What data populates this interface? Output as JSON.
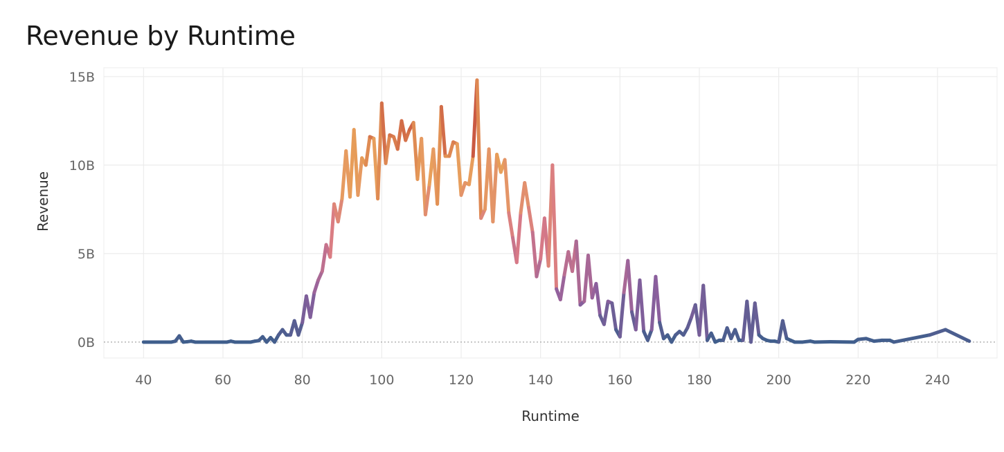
{
  "chart_data": {
    "type": "line",
    "title": "Revenue by Runtime",
    "xlabel": "Runtime",
    "ylabel": "Revenue",
    "xlim": [
      30,
      255
    ],
    "ylim": [
      -0.9,
      15.5
    ],
    "x_ticks": [
      40,
      60,
      80,
      100,
      120,
      140,
      160,
      180,
      200,
      220,
      240
    ],
    "y_ticks": [
      0,
      5,
      10,
      15
    ],
    "y_tick_labels": [
      "0B",
      "5B",
      "10B",
      "15B"
    ],
    "y_unit": "billions",
    "grid": true,
    "colors": {
      "low": "#3f5e8c",
      "mid_low": "#8e5f9e",
      "mid": "#d97a86",
      "mid_high": "#e8a05a",
      "high": "#c0423a",
      "zero_line": "#9a9a9a",
      "grid": "#ececec"
    },
    "series": [
      {
        "values": [
          [
            40,
            0.0
          ],
          [
            41,
            0.0
          ],
          [
            42,
            0.0
          ],
          [
            43,
            0.0
          ],
          [
            44,
            0.0
          ],
          [
            45,
            0.0
          ],
          [
            46,
            0.0
          ],
          [
            47,
            0.0
          ],
          [
            48,
            0.05
          ],
          [
            49,
            0.35
          ],
          [
            50,
            0.0
          ],
          [
            51,
            0.02
          ],
          [
            52,
            0.05
          ],
          [
            53,
            0.0
          ],
          [
            54,
            0.0
          ],
          [
            55,
            0.0
          ],
          [
            56,
            0.0
          ],
          [
            57,
            0.0
          ],
          [
            58,
            0.0
          ],
          [
            59,
            0.0
          ],
          [
            60,
            0.0
          ],
          [
            61,
            0.0
          ],
          [
            62,
            0.05
          ],
          [
            63,
            0.0
          ],
          [
            64,
            0.0
          ],
          [
            65,
            0.0
          ],
          [
            66,
            0.0
          ],
          [
            67,
            0.0
          ],
          [
            68,
            0.05
          ],
          [
            69,
            0.08
          ],
          [
            70,
            0.3
          ],
          [
            71,
            0.0
          ],
          [
            72,
            0.25
          ],
          [
            73,
            0.0
          ],
          [
            74,
            0.4
          ],
          [
            75,
            0.7
          ],
          [
            76,
            0.4
          ],
          [
            77,
            0.4
          ],
          [
            78,
            1.2
          ],
          [
            79,
            0.4
          ],
          [
            80,
            1.1
          ],
          [
            81,
            2.6
          ],
          [
            82,
            1.4
          ],
          [
            83,
            2.8
          ],
          [
            84,
            3.5
          ],
          [
            85,
            4.0
          ],
          [
            86,
            5.5
          ],
          [
            87,
            4.8
          ],
          [
            88,
            7.8
          ],
          [
            89,
            6.8
          ],
          [
            90,
            8.1
          ],
          [
            91,
            10.8
          ],
          [
            92,
            8.2
          ],
          [
            93,
            12.0
          ],
          [
            94,
            8.3
          ],
          [
            95,
            10.4
          ],
          [
            96,
            10.0
          ],
          [
            97,
            11.6
          ],
          [
            98,
            11.5
          ],
          [
            99,
            8.1
          ],
          [
            100,
            13.5
          ],
          [
            101,
            10.1
          ],
          [
            102,
            11.7
          ],
          [
            103,
            11.6
          ],
          [
            104,
            10.9
          ],
          [
            105,
            12.5
          ],
          [
            106,
            11.4
          ],
          [
            107,
            12.0
          ],
          [
            108,
            12.4
          ],
          [
            109,
            9.2
          ],
          [
            110,
            11.5
          ],
          [
            111,
            7.2
          ],
          [
            112,
            8.9
          ],
          [
            113,
            10.9
          ],
          [
            114,
            7.8
          ],
          [
            115,
            13.3
          ],
          [
            116,
            10.5
          ],
          [
            117,
            10.5
          ],
          [
            118,
            11.3
          ],
          [
            119,
            11.2
          ],
          [
            120,
            8.3
          ],
          [
            121,
            9.0
          ],
          [
            122,
            8.9
          ],
          [
            123,
            10.5
          ],
          [
            124,
            14.8
          ],
          [
            125,
            7.0
          ],
          [
            126,
            7.5
          ],
          [
            127,
            10.9
          ],
          [
            128,
            6.8
          ],
          [
            129,
            10.6
          ],
          [
            130,
            9.6
          ],
          [
            131,
            10.3
          ],
          [
            132,
            7.3
          ],
          [
            133,
            5.9
          ],
          [
            134,
            4.5
          ],
          [
            135,
            7.3
          ],
          [
            136,
            9.0
          ],
          [
            137,
            7.6
          ],
          [
            138,
            6.2
          ],
          [
            139,
            3.7
          ],
          [
            140,
            4.7
          ],
          [
            141,
            7.0
          ],
          [
            142,
            4.3
          ],
          [
            143,
            10.0
          ],
          [
            144,
            3.0
          ],
          [
            145,
            2.4
          ],
          [
            146,
            3.8
          ],
          [
            147,
            5.1
          ],
          [
            148,
            4.0
          ],
          [
            149,
            5.7
          ],
          [
            150,
            2.1
          ],
          [
            151,
            2.3
          ],
          [
            152,
            4.9
          ],
          [
            153,
            2.5
          ],
          [
            154,
            3.3
          ],
          [
            155,
            1.5
          ],
          [
            156,
            1.0
          ],
          [
            157,
            2.3
          ],
          [
            158,
            2.2
          ],
          [
            159,
            0.7
          ],
          [
            160,
            0.3
          ],
          [
            161,
            2.8
          ],
          [
            162,
            4.6
          ],
          [
            163,
            1.7
          ],
          [
            164,
            0.7
          ],
          [
            165,
            3.5
          ],
          [
            166,
            0.6
          ],
          [
            167,
            0.1
          ],
          [
            168,
            0.7
          ],
          [
            169,
            3.7
          ],
          [
            170,
            1.1
          ],
          [
            171,
            0.2
          ],
          [
            172,
            0.4
          ],
          [
            173,
            0.0
          ],
          [
            174,
            0.4
          ],
          [
            175,
            0.6
          ],
          [
            176,
            0.4
          ],
          [
            177,
            0.8
          ],
          [
            178,
            1.4
          ],
          [
            179,
            2.1
          ],
          [
            180,
            0.4
          ],
          [
            181,
            3.2
          ],
          [
            182,
            0.1
          ],
          [
            183,
            0.5
          ],
          [
            184,
            0.0
          ],
          [
            185,
            0.1
          ],
          [
            186,
            0.1
          ],
          [
            187,
            0.8
          ],
          [
            188,
            0.2
          ],
          [
            189,
            0.7
          ],
          [
            190,
            0.1
          ],
          [
            191,
            0.1
          ],
          [
            192,
            2.3
          ],
          [
            193,
            0.0
          ],
          [
            194,
            2.2
          ],
          [
            195,
            0.4
          ],
          [
            196,
            0.2
          ],
          [
            197,
            0.1
          ],
          [
            198,
            0.05
          ],
          [
            199,
            0.05
          ],
          [
            200,
            0.0
          ],
          [
            201,
            1.2
          ],
          [
            202,
            0.2
          ],
          [
            203,
            0.1
          ],
          [
            204,
            0.0
          ],
          [
            206,
            0.0
          ],
          [
            208,
            0.05
          ],
          [
            209,
            0.0
          ],
          [
            213,
            0.02
          ],
          [
            219,
            0.0
          ],
          [
            220,
            0.15
          ],
          [
            222,
            0.2
          ],
          [
            224,
            0.05
          ],
          [
            226,
            0.1
          ],
          [
            228,
            0.1
          ],
          [
            229,
            0.0
          ],
          [
            238,
            0.4
          ],
          [
            242,
            0.7
          ],
          [
            248,
            0.05
          ]
        ]
      }
    ]
  }
}
